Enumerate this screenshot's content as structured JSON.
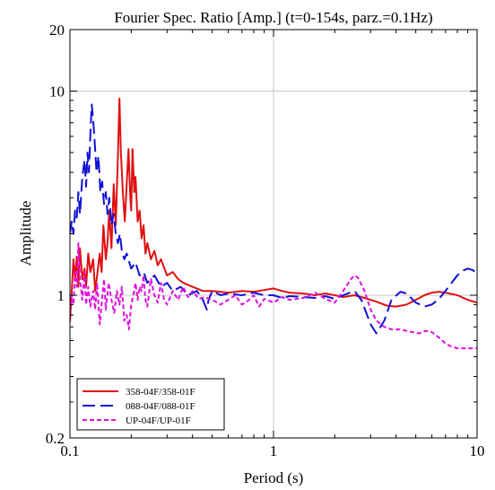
{
  "chart_data": {
    "type": "line",
    "title": "Fourier Spec. Ratio [Amp.] (t=0-154s, parz.=0.1Hz)",
    "xlabel": "Period (s)",
    "ylabel": "Amplitude",
    "x_scale": "log",
    "y_scale": "log",
    "xlim": [
      0.1,
      10
    ],
    "ylim": [
      0.2,
      20
    ],
    "x_ticks": [
      {
        "value": 0.1,
        "label": "0.1"
      },
      {
        "value": 1,
        "label": "1"
      },
      {
        "value": 10,
        "label": "10"
      }
    ],
    "y_ticks": [
      {
        "value": 0.2,
        "label": "0.2"
      },
      {
        "value": 1,
        "label": "1"
      },
      {
        "value": 10,
        "label": "10"
      },
      {
        "value": 20,
        "label": "20"
      }
    ],
    "grid": true,
    "legend_position": "bottom-left",
    "series": [
      {
        "name": "358-04F/358-01F",
        "color": "#e01010",
        "dash": "solid",
        "points": [
          [
            0.1,
            0.74
          ],
          [
            0.102,
            1.05
          ],
          [
            0.104,
            1.5
          ],
          [
            0.106,
            1.2
          ],
          [
            0.108,
            1.55
          ],
          [
            0.11,
            1.1
          ],
          [
            0.112,
            1.7
          ],
          [
            0.115,
            1.2
          ],
          [
            0.118,
            1.35
          ],
          [
            0.12,
            1.1
          ],
          [
            0.123,
            1.6
          ],
          [
            0.126,
            1.3
          ],
          [
            0.13,
            1.5
          ],
          [
            0.133,
            1.05
          ],
          [
            0.136,
            1.25
          ],
          [
            0.14,
            1.6
          ],
          [
            0.143,
            1.3
          ],
          [
            0.146,
            2.2
          ],
          [
            0.15,
            1.5
          ],
          [
            0.153,
            1.8
          ],
          [
            0.156,
            2.6
          ],
          [
            0.16,
            1.7
          ],
          [
            0.164,
            3.5
          ],
          [
            0.168,
            2.2
          ],
          [
            0.172,
            4.8
          ],
          [
            0.175,
            9.2
          ],
          [
            0.178,
            5.0
          ],
          [
            0.182,
            3.2
          ],
          [
            0.186,
            2.3
          ],
          [
            0.19,
            3.5
          ],
          [
            0.194,
            5.2
          ],
          [
            0.198,
            3.0
          ],
          [
            0.2,
            2.6
          ],
          [
            0.203,
            5.2
          ],
          [
            0.207,
            3.2
          ],
          [
            0.21,
            3.8
          ],
          [
            0.215,
            2.3
          ],
          [
            0.22,
            2.6
          ],
          [
            0.225,
            1.9
          ],
          [
            0.23,
            2.2
          ],
          [
            0.235,
            1.6
          ],
          [
            0.24,
            1.8
          ],
          [
            0.25,
            1.5
          ],
          [
            0.26,
            1.65
          ],
          [
            0.27,
            1.4
          ],
          [
            0.28,
            1.5
          ],
          [
            0.3,
            1.25
          ],
          [
            0.32,
            1.3
          ],
          [
            0.34,
            1.2
          ],
          [
            0.36,
            1.15
          ],
          [
            0.4,
            1.1
          ],
          [
            0.45,
            1.05
          ],
          [
            0.5,
            1.05
          ],
          [
            0.6,
            1.03
          ],
          [
            0.7,
            1.05
          ],
          [
            0.8,
            1.04
          ],
          [
            0.9,
            1.06
          ],
          [
            1.0,
            1.08
          ],
          [
            1.1,
            1.05
          ],
          [
            1.2,
            1.03
          ],
          [
            1.4,
            1.02
          ],
          [
            1.6,
            1.0
          ],
          [
            1.8,
            1.02
          ],
          [
            2.0,
            1.0
          ],
          [
            2.2,
            0.98
          ],
          [
            2.5,
            1.0
          ],
          [
            2.8,
            0.97
          ],
          [
            3.2,
            0.93
          ],
          [
            3.6,
            0.89
          ],
          [
            4.0,
            0.88
          ],
          [
            4.5,
            0.9
          ],
          [
            5.0,
            0.95
          ],
          [
            5.5,
            1.0
          ],
          [
            6.0,
            1.03
          ],
          [
            6.5,
            1.04
          ],
          [
            7.0,
            1.03
          ],
          [
            8.0,
            1.0
          ],
          [
            9.0,
            0.95
          ],
          [
            10.0,
            0.92
          ]
        ]
      },
      {
        "name": "088-04F/088-01F",
        "color": "#1010d8",
        "dash": "long-dash",
        "points": [
          [
            0.1,
            2.0
          ],
          [
            0.102,
            2.3
          ],
          [
            0.104,
            2.0
          ],
          [
            0.106,
            2.6
          ],
          [
            0.108,
            2.4
          ],
          [
            0.11,
            3.2
          ],
          [
            0.112,
            2.5
          ],
          [
            0.115,
            3.8
          ],
          [
            0.118,
            4.6
          ],
          [
            0.12,
            3.4
          ],
          [
            0.122,
            5.0
          ],
          [
            0.124,
            4.0
          ],
          [
            0.126,
            6.2
          ],
          [
            0.128,
            8.6
          ],
          [
            0.13,
            7.2
          ],
          [
            0.132,
            5.8
          ],
          [
            0.135,
            4.0
          ],
          [
            0.138,
            4.8
          ],
          [
            0.141,
            3.2
          ],
          [
            0.144,
            3.6
          ],
          [
            0.147,
            2.8
          ],
          [
            0.15,
            3.2
          ],
          [
            0.153,
            2.5
          ],
          [
            0.156,
            3.0
          ],
          [
            0.16,
            2.2
          ],
          [
            0.164,
            2.5
          ],
          [
            0.168,
            2.0
          ],
          [
            0.172,
            1.8
          ],
          [
            0.176,
            2.0
          ],
          [
            0.18,
            1.65
          ],
          [
            0.185,
            1.5
          ],
          [
            0.19,
            1.6
          ],
          [
            0.2,
            1.35
          ],
          [
            0.21,
            1.45
          ],
          [
            0.22,
            1.25
          ],
          [
            0.23,
            1.3
          ],
          [
            0.24,
            1.15
          ],
          [
            0.26,
            1.25
          ],
          [
            0.28,
            1.1
          ],
          [
            0.3,
            1.15
          ],
          [
            0.32,
            1.05
          ],
          [
            0.35,
            1.1
          ],
          [
            0.38,
            1.0
          ],
          [
            0.42,
            1.05
          ],
          [
            0.45,
            0.95
          ],
          [
            0.47,
            0.85
          ],
          [
            0.48,
            0.95
          ],
          [
            0.5,
            1.05
          ],
          [
            0.55,
            1.0
          ],
          [
            0.6,
            1.02
          ],
          [
            0.7,
            1.0
          ],
          [
            0.8,
            1.03
          ],
          [
            0.9,
            1.0
          ],
          [
            1.0,
            1.0
          ],
          [
            1.1,
            0.97
          ],
          [
            1.2,
            0.99
          ],
          [
            1.4,
            0.98
          ],
          [
            1.6,
            0.97
          ],
          [
            1.8,
            0.99
          ],
          [
            2.0,
            0.96
          ],
          [
            2.2,
            1.0
          ],
          [
            2.5,
            1.05
          ],
          [
            2.7,
            0.95
          ],
          [
            3.0,
            0.72
          ],
          [
            3.2,
            0.65
          ],
          [
            3.5,
            0.75
          ],
          [
            3.8,
            0.95
          ],
          [
            4.2,
            1.04
          ],
          [
            4.5,
            1.02
          ],
          [
            5.0,
            0.92
          ],
          [
            5.5,
            0.88
          ],
          [
            6.0,
            0.9
          ],
          [
            6.5,
            0.96
          ],
          [
            7.0,
            1.05
          ],
          [
            7.5,
            1.15
          ],
          [
            8.0,
            1.25
          ],
          [
            8.5,
            1.32
          ],
          [
            9.0,
            1.35
          ],
          [
            9.5,
            1.33
          ],
          [
            10.0,
            1.28
          ]
        ]
      },
      {
        "name": "UP-04F/UP-01F",
        "color": "#e010e0",
        "dash": "short-dash",
        "points": [
          [
            0.1,
            0.82
          ],
          [
            0.102,
            1.0
          ],
          [
            0.104,
            0.9
          ],
          [
            0.106,
            1.3
          ],
          [
            0.108,
            1.1
          ],
          [
            0.11,
            1.8
          ],
          [
            0.112,
            1.2
          ],
          [
            0.115,
            0.95
          ],
          [
            0.118,
            1.3
          ],
          [
            0.12,
            0.9
          ],
          [
            0.123,
            1.1
          ],
          [
            0.126,
            0.88
          ],
          [
            0.13,
            1.05
          ],
          [
            0.133,
            0.85
          ],
          [
            0.136,
            1.15
          ],
          [
            0.14,
            0.72
          ],
          [
            0.143,
            0.9
          ],
          [
            0.147,
            1.2
          ],
          [
            0.15,
            0.85
          ],
          [
            0.155,
            1.15
          ],
          [
            0.16,
            0.95
          ],
          [
            0.165,
            0.82
          ],
          [
            0.17,
            1.05
          ],
          [
            0.175,
            0.9
          ],
          [
            0.18,
            1.1
          ],
          [
            0.185,
            0.75
          ],
          [
            0.19,
            0.8
          ],
          [
            0.195,
            0.68
          ],
          [
            0.2,
            0.9
          ],
          [
            0.205,
            1.0
          ],
          [
            0.21,
            1.15
          ],
          [
            0.215,
            0.95
          ],
          [
            0.22,
            1.1
          ],
          [
            0.225,
            1.05
          ],
          [
            0.23,
            1.25
          ],
          [
            0.235,
            0.95
          ],
          [
            0.24,
            0.88
          ],
          [
            0.25,
            1.2
          ],
          [
            0.26,
            1.0
          ],
          [
            0.27,
            0.92
          ],
          [
            0.28,
            1.15
          ],
          [
            0.29,
            0.95
          ],
          [
            0.3,
            0.9
          ],
          [
            0.32,
            1.05
          ],
          [
            0.34,
            0.95
          ],
          [
            0.36,
            1.1
          ],
          [
            0.38,
            0.98
          ],
          [
            0.4,
            1.05
          ],
          [
            0.43,
            0.96
          ],
          [
            0.46,
            0.98
          ],
          [
            0.5,
            0.95
          ],
          [
            0.55,
            0.9
          ],
          [
            0.6,
            0.95
          ],
          [
            0.65,
            1.0
          ],
          [
            0.7,
            0.9
          ],
          [
            0.75,
            0.94
          ],
          [
            0.8,
            1.0
          ],
          [
            0.85,
            0.88
          ],
          [
            0.9,
            0.96
          ],
          [
            1.0,
            0.92
          ],
          [
            1.1,
            0.98
          ],
          [
            1.2,
            0.95
          ],
          [
            1.4,
            0.97
          ],
          [
            1.6,
            1.03
          ],
          [
            1.8,
            0.96
          ],
          [
            2.0,
            0.92
          ],
          [
            2.2,
            1.05
          ],
          [
            2.4,
            1.2
          ],
          [
            2.5,
            1.25
          ],
          [
            2.6,
            1.22
          ],
          [
            2.8,
            1.05
          ],
          [
            3.0,
            0.85
          ],
          [
            3.2,
            0.75
          ],
          [
            3.5,
            0.7
          ],
          [
            3.8,
            0.68
          ],
          [
            4.2,
            0.68
          ],
          [
            4.8,
            0.66
          ],
          [
            5.2,
            0.65
          ],
          [
            5.6,
            0.67
          ],
          [
            6.0,
            0.66
          ],
          [
            6.5,
            0.62
          ],
          [
            7.0,
            0.58
          ],
          [
            7.5,
            0.56
          ],
          [
            8.0,
            0.55
          ],
          [
            9.0,
            0.55
          ],
          [
            10.0,
            0.55
          ]
        ]
      }
    ]
  }
}
